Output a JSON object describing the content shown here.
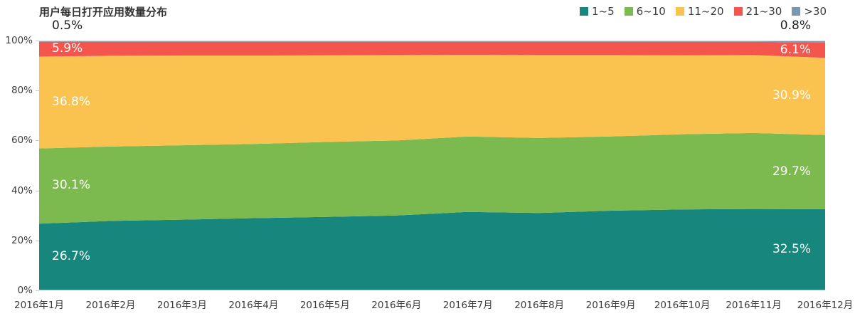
{
  "title": "用户每日打开应用数量分布",
  "chart_data": {
    "type": "area",
    "stacked_percent": true,
    "title": "用户每日打开应用数量分布",
    "categories": [
      "2016年1月",
      "2016年2月",
      "2016年3月",
      "2016年4月",
      "2016年5月",
      "2016年6月",
      "2016年7月",
      "2016年8月",
      "2016年9月",
      "2016年10月",
      "2016年11月",
      "2016年12月"
    ],
    "series": [
      {
        "name": "1~5",
        "color": "#17867C",
        "values": [
          26.7,
          27.8,
          28.3,
          28.9,
          29.4,
          30.0,
          31.4,
          31.0,
          31.9,
          32.4,
          32.6,
          32.5
        ],
        "label_start": "26.7%",
        "label_end": "32.5%"
      },
      {
        "name": "6~10",
        "color": "#7CB94E",
        "values": [
          30.1,
          29.8,
          29.8,
          29.7,
          30.0,
          30.0,
          30.2,
          30.0,
          29.7,
          30.1,
          30.4,
          29.7
        ],
        "label_start": "30.1%",
        "label_end": "29.7%"
      },
      {
        "name": "11~20",
        "color": "#FAC350",
        "values": [
          36.8,
          36.3,
          35.9,
          35.4,
          34.7,
          34.2,
          32.7,
          33.2,
          32.6,
          31.6,
          31.2,
          30.9
        ],
        "label_start": "36.8%",
        "label_end": "30.9%"
      },
      {
        "name": "21~30",
        "color": "#F4564E",
        "values": [
          5.9,
          5.6,
          5.5,
          5.5,
          5.4,
          5.3,
          5.2,
          5.3,
          5.3,
          5.4,
          5.3,
          6.1
        ],
        "label_start": "5.9%",
        "label_end": "6.1%"
      },
      {
        "name": ">30",
        "color": "#7D96AE",
        "values": [
          0.5,
          0.5,
          0.5,
          0.5,
          0.5,
          0.5,
          0.5,
          0.5,
          0.5,
          0.5,
          0.5,
          0.8
        ],
        "label_start": "0.5%",
        "label_end": "0.8%"
      }
    ],
    "y_ticks": [
      "0%",
      "20%",
      "40%",
      "60%",
      "80%",
      "100%"
    ],
    "ylim": [
      0,
      100
    ],
    "xlabel": "",
    "ylabel": "",
    "legend_position": "top-right",
    "grid": false,
    "axis_color": "#c9c9c9",
    "text_color": "#3d3d3d"
  }
}
